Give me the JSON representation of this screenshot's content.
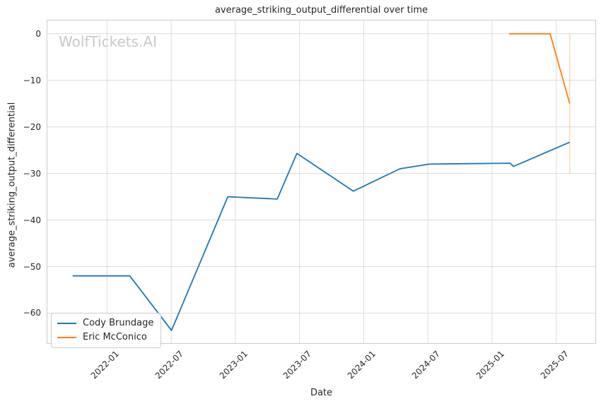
{
  "watermark": "WolfTickets.AI",
  "colors": {
    "cody_blue": "#1f77b4",
    "eric_orange": "#ff7f0e",
    "grid": "#dcdcdc",
    "spine": "#cccccc",
    "text": "#262626",
    "watermark": "#c9c9c9"
  },
  "chart_data": {
    "type": "line",
    "title": "average_striking_output_differential over time",
    "xlabel": "Date",
    "ylabel": "average_striking_output_differential",
    "grid": true,
    "legend_position": "lower-left",
    "x_tick_labels": [
      "2022-01",
      "2022-07",
      "2023-01",
      "2023-07",
      "2024-01",
      "2024-07",
      "2025-01",
      "2025-07"
    ],
    "y_tick_labels": [
      "0",
      "−10",
      "−20",
      "−30",
      "−40",
      "−50",
      "−60"
    ],
    "y_tick_values": [
      0,
      -10,
      -20,
      -30,
      -40,
      -50,
      -60
    ],
    "xlim": [
      "2021-07-12",
      "2025-10-23"
    ],
    "ylim": [
      -66.6,
      3.0
    ],
    "series": [
      {
        "name": "Cody Brundage",
        "color": "#1f77b4",
        "points": [
          [
            "2021-09-25",
            -52
          ],
          [
            "2022-03-05",
            -52
          ],
          [
            "2022-07-02",
            -63.7
          ],
          [
            "2022-12-10",
            -35
          ],
          [
            "2023-04-29",
            -35.5
          ],
          [
            "2023-06-24",
            -25.7
          ],
          [
            "2023-12-02",
            -33.8
          ],
          [
            "2024-04-13",
            -29
          ],
          [
            "2024-07-06",
            -28
          ],
          [
            "2025-02-22",
            -27.8
          ],
          [
            "2025-03-01",
            -28.5
          ],
          [
            "2025-08-09",
            -23.3
          ]
        ]
      },
      {
        "name": "Eric McConico",
        "color": "#ff7f0e",
        "points": [
          [
            "2025-02-19",
            0
          ],
          [
            "2025-06-14",
            0
          ],
          [
            "2025-08-09",
            -15
          ]
        ]
      }
    ],
    "last_point_error_bar": {
      "series": "Eric McConico",
      "date": "2025-08-09",
      "value_range": [
        0,
        -30
      ],
      "color": "#ff7f0e"
    }
  }
}
